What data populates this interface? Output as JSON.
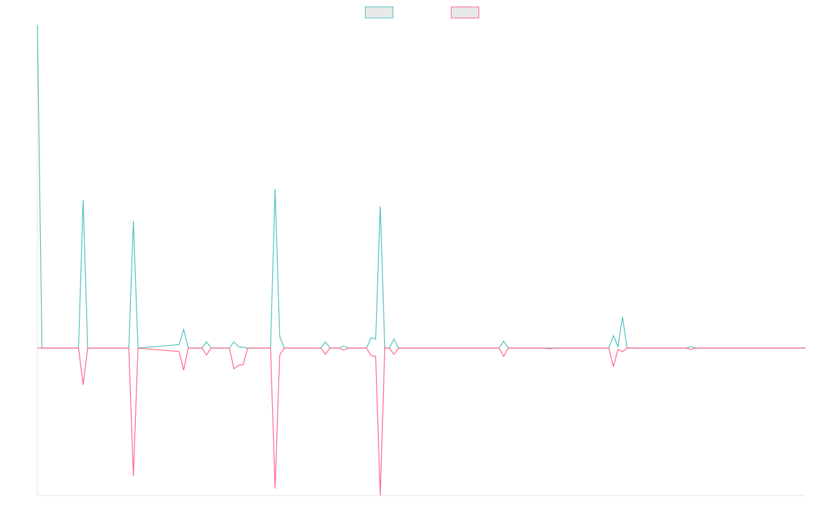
{
  "chart_data": {
    "type": "line",
    "legend": "top",
    "x": [
      0,
      1,
      9,
      10,
      11,
      20,
      21,
      22,
      31,
      32,
      33,
      36,
      37,
      38,
      42,
      43,
      44,
      45,
      46,
      51,
      52,
      53,
      54,
      62,
      63,
      64,
      66,
      67,
      68,
      72,
      73,
      74,
      75,
      76,
      77,
      78,
      79,
      101,
      102,
      103,
      111,
      112,
      113,
      125,
      126,
      127,
      128,
      129,
      142,
      143,
      144,
      168
    ],
    "xlim": [
      0,
      168
    ],
    "ylim": [
      -213,
      467
    ],
    "series": [
      {
        "color": "#4bc0c0",
        "values": [
          467,
          0,
          0,
          214,
          0,
          0,
          184,
          0,
          5,
          27,
          0,
          0,
          9,
          0,
          0,
          9,
          2,
          1,
          0,
          0,
          230,
          17,
          0,
          0,
          9,
          0,
          0,
          3,
          0,
          0,
          15,
          13,
          205,
          0,
          0,
          13,
          0,
          0,
          10,
          0,
          0,
          0,
          0,
          0,
          18,
          2,
          45,
          0,
          0,
          2,
          0,
          0
        ]
      },
      {
        "color": "#ff6384",
        "values": [
          0,
          0,
          0,
          -53,
          0,
          0,
          -185,
          0,
          -5,
          -32,
          0,
          0,
          -10,
          0,
          0,
          -30,
          -25,
          -24,
          0,
          0,
          -203,
          -10,
          0,
          0,
          -9,
          0,
          0,
          -3,
          0,
          0,
          -11,
          -12,
          -213,
          0,
          0,
          -9,
          0,
          0,
          -12,
          0,
          0,
          -1,
          0,
          0,
          -27,
          -2,
          -5,
          0,
          0,
          -2,
          0,
          0
        ]
      }
    ]
  }
}
